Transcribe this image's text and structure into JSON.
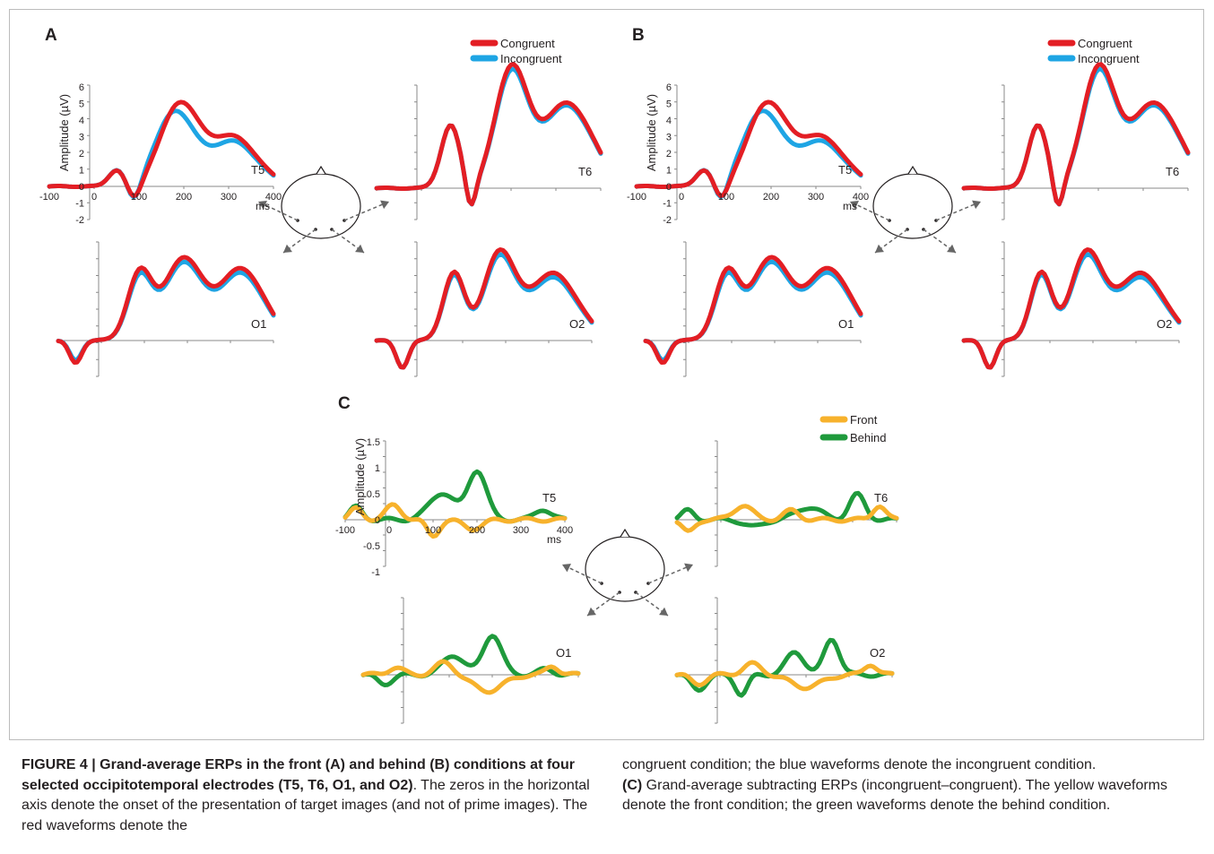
{
  "figure": {
    "panels": [
      {
        "letter": "A",
        "legend": [
          "Congruent",
          "Incongruent"
        ],
        "colors": [
          "#e31e24",
          "#1ea5e4"
        ],
        "electrodes": [
          "T5",
          "T6",
          "O1",
          "O2"
        ],
        "y_ticks": [
          "6",
          "5",
          "4",
          "3",
          "2",
          "1",
          "0",
          "-1",
          "-2"
        ],
        "x_ticks": [
          "-100",
          "0",
          "100",
          "200",
          "300",
          "400"
        ],
        "x_unit": "ms",
        "y_label": "Amplitude (µV)"
      },
      {
        "letter": "B",
        "legend": [
          "Congruent",
          "Incongruent"
        ],
        "colors": [
          "#e31e24",
          "#1ea5e4"
        ],
        "electrodes": [
          "T5",
          "T6",
          "O1",
          "O2"
        ],
        "y_ticks": [
          "6",
          "5",
          "4",
          "3",
          "2",
          "1",
          "0",
          "-1",
          "-2"
        ],
        "x_ticks": [
          "-100",
          "0",
          "100",
          "200",
          "300",
          "400"
        ],
        "x_unit": "ms",
        "y_label": "Amplitude (µV)"
      },
      {
        "letter": "C",
        "legend": [
          "Front",
          "Behind"
        ],
        "colors": [
          "#f7b22c",
          "#1f9a3c"
        ],
        "electrodes": [
          "T5",
          "T6",
          "O1",
          "O2"
        ],
        "y_ticks": [
          "1.5",
          "1",
          "0.5",
          "0",
          "-0.5",
          "-1"
        ],
        "x_ticks": [
          "-100",
          "0",
          "100",
          "200",
          "300",
          "400"
        ],
        "x_unit": "ms",
        "y_label": "Amplitude (µV)"
      }
    ]
  },
  "caption": {
    "label": "FIGURE 4 | Grand-average ERPs in the front (A) and behind (B) conditions at four selected occipitotemporal electrodes (T5, T6, O1, and O2)",
    "left_text": ". The zeros in the horizontal axis denote the onset of the presentation of target images (and not of prime images). The red waveforms denote the",
    "right_text_1": "congruent condition; the blue waveforms denote the incongruent condition.",
    "right_bold": "(C)",
    "right_text_2": " Grand-average subtracting ERPs (incongruent–congruent). The yellow waveforms denote the front condition; the green waveforms denote the behind condition."
  }
}
